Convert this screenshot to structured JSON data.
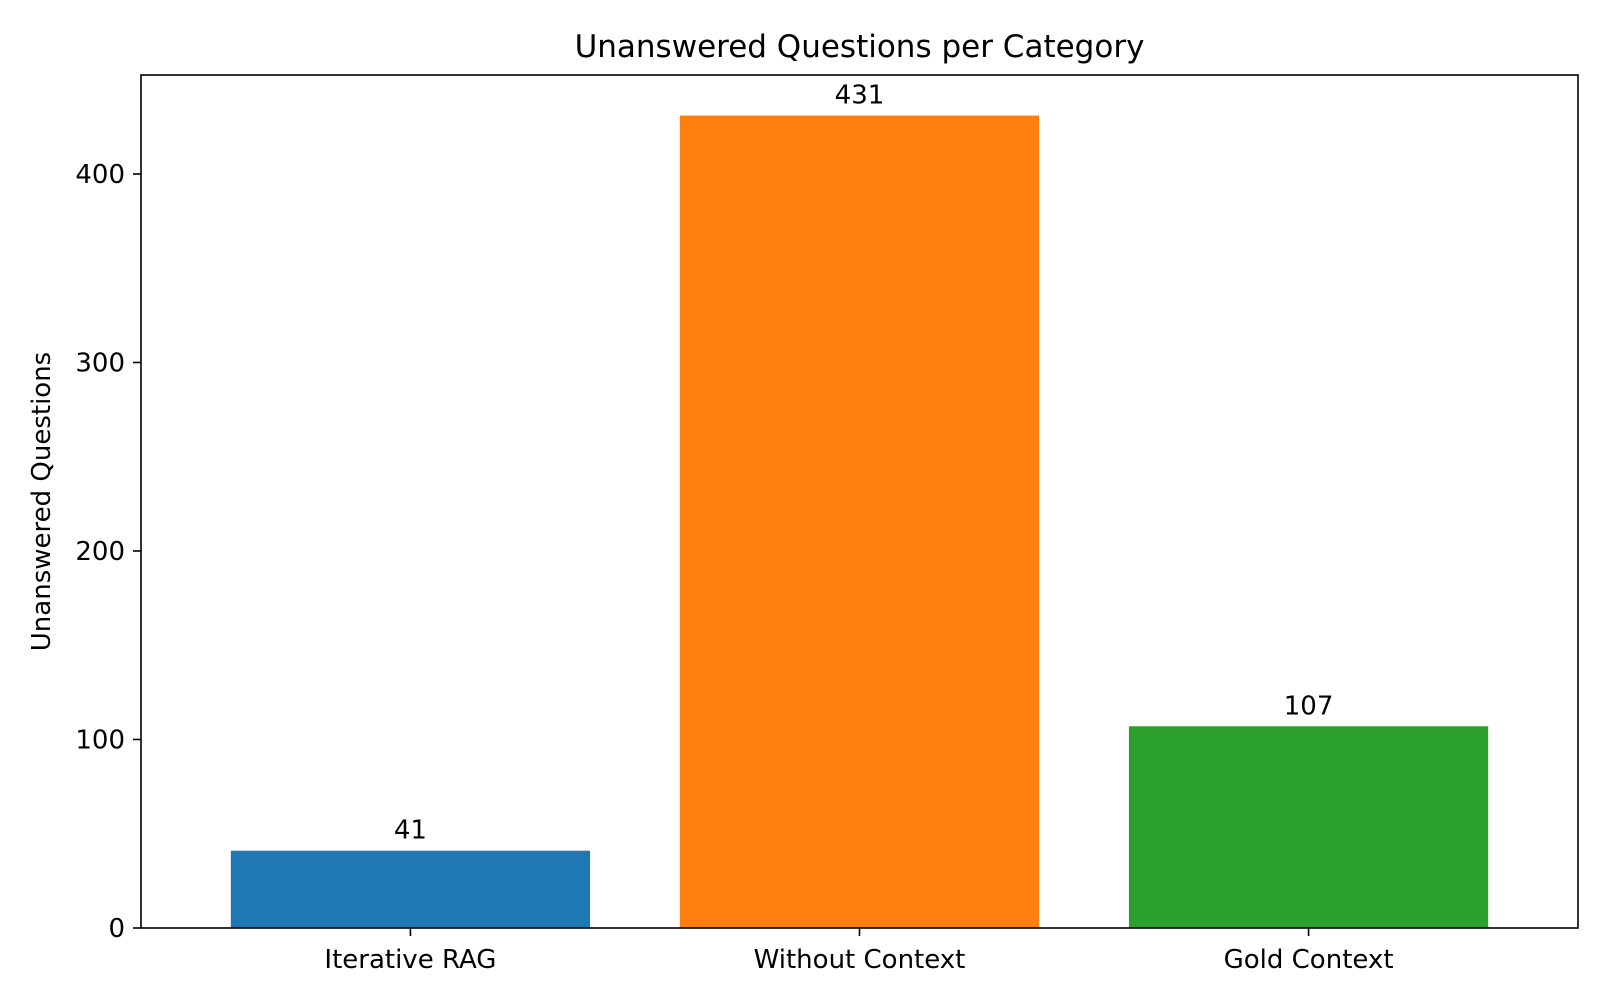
{
  "chart_data": {
    "type": "bar",
    "title": "Unanswered Questions per Category",
    "xlabel": "",
    "ylabel": "Unanswered Questions",
    "categories": [
      "Iterative RAG",
      "Without Context",
      "Gold Context"
    ],
    "values": [
      41,
      431,
      107
    ],
    "value_labels": [
      "41",
      "431",
      "107"
    ],
    "colors": [
      "#1f77b4",
      "#ff7f0e",
      "#2ca02c"
    ],
    "ylim": [
      0,
      452.5
    ],
    "yticks": [
      0,
      100,
      200,
      300,
      400
    ],
    "ytick_labels": [
      "0",
      "100",
      "200",
      "300",
      "400"
    ],
    "grid": false,
    "legend": "none"
  }
}
